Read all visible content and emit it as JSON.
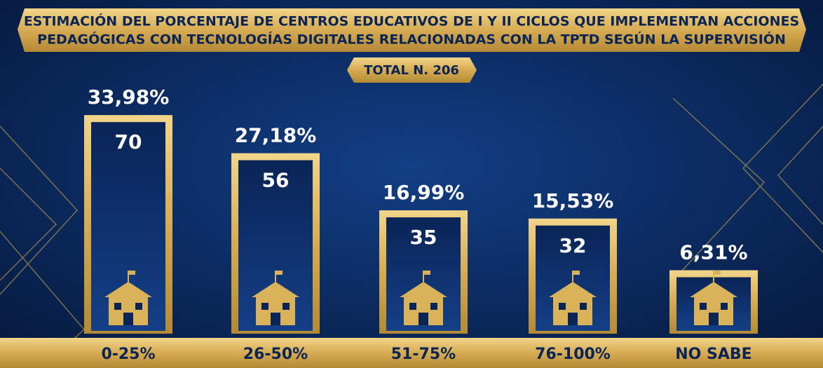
{
  "chart_data": {
    "type": "bar",
    "title": [
      "ESTIMACIÓN DEL PORCENTAJE DE CENTROS EDUCATIVOS DE I Y II CICLOS QUE IMPLEMENTAN ACCIONES",
      "PEDAGÓGICAS CON TECNOLOGÍAS DIGITALES RELACIONADAS CON LA TPTD SEGÚN LA SUPERVISIÓN"
    ],
    "subtitle": "TOTAL N. 206",
    "categories": [
      "0-25%",
      "26-50%",
      "51-75%",
      "76-100%",
      "NO SABE"
    ],
    "values": [
      33.98,
      27.18,
      16.99,
      15.53,
      6.31
    ],
    "value_labels": [
      "33,98%",
      "27,18%",
      "16,99%",
      "15,53%",
      "6,31%"
    ],
    "counts": [
      70,
      56,
      35,
      32,
      null
    ],
    "color": "#d9b25a"
  }
}
